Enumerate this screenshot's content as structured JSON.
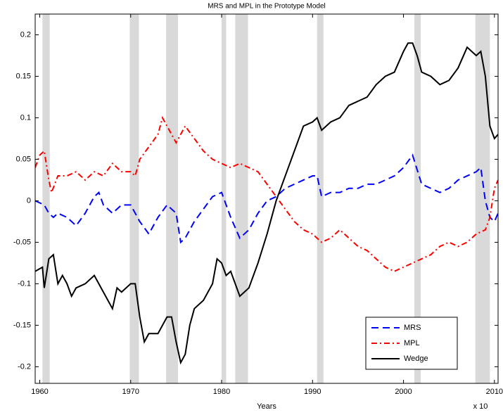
{
  "chart_data": {
    "type": "line",
    "title": "MRS and MPL in the Prototype Model",
    "x_label": "Years",
    "annotation": "x 10",
    "xlim": [
      1959.5,
      2010.4
    ],
    "ylim": [
      -0.22,
      0.225
    ],
    "xticks": [
      1960,
      1970,
      1980,
      1990,
      2000,
      2010
    ],
    "yticks": [
      -0.2,
      -0.15,
      -0.1,
      -0.05,
      0,
      0.05,
      0.1,
      0.15,
      0.2
    ],
    "shaded_periods": [
      [
        1960.3,
        1961.1
      ],
      [
        1969.9,
        1970.9
      ],
      [
        1973.9,
        1975.2
      ],
      [
        1980.0,
        1980.5
      ],
      [
        1981.5,
        1982.9
      ],
      [
        1990.5,
        1991.2
      ],
      [
        2001.2,
        2001.9
      ],
      [
        2007.9,
        2009.5
      ]
    ],
    "shade_color": "#d9d9d9",
    "legend_position": "lower right",
    "series": [
      {
        "name": "MRS",
        "color": "#0000ff",
        "line_style": "dashed",
        "x": [
          1959.5,
          1960.5,
          1961,
          1961.5,
          1962,
          1963,
          1964,
          1965,
          1966,
          1966.5,
          1967,
          1968,
          1969,
          1970,
          1971,
          1972,
          1973,
          1974,
          1975,
          1975.5,
          1976,
          1977,
          1978,
          1979,
          1980,
          1980.5,
          1981,
          1982,
          1983,
          1984,
          1985,
          1986,
          1987,
          1988,
          1989,
          1990,
          1990.5,
          1991,
          1992,
          1993,
          1994,
          1995,
          1996,
          1997,
          1998,
          1999,
          2000,
          2001,
          2002,
          2003,
          2004,
          2005,
          2006,
          2007,
          2008,
          2008.5,
          2009,
          2009.5,
          2010,
          2010.4
        ],
        "values": [
          0,
          -0.005,
          -0.015,
          -0.02,
          -0.015,
          -0.02,
          -0.03,
          -0.015,
          0.005,
          0.01,
          -0.005,
          -0.015,
          -0.005,
          -0.005,
          -0.025,
          -0.04,
          -0.02,
          -0.005,
          -0.015,
          -0.05,
          -0.045,
          -0.025,
          -0.01,
          0.005,
          0.01,
          -0.005,
          -0.02,
          -0.045,
          -0.035,
          -0.015,
          0,
          0.005,
          0.015,
          0.02,
          0.025,
          0.03,
          0.03,
          0.005,
          0.01,
          0.01,
          0.015,
          0.015,
          0.02,
          0.02,
          0.025,
          0.03,
          0.04,
          0.055,
          0.02,
          0.015,
          0.01,
          0.015,
          0.025,
          0.03,
          0.035,
          0.04,
          0,
          -0.02,
          -0.025,
          -0.015
        ]
      },
      {
        "name": "MPL",
        "color": "#ff0000",
        "line_style": "dashdot",
        "x": [
          1959.5,
          1960,
          1960.5,
          1961,
          1961.3,
          1962,
          1963,
          1964,
          1965,
          1966,
          1967,
          1968,
          1969,
          1970,
          1970.5,
          1971,
          1972,
          1973,
          1973.5,
          1974,
          1975,
          1976,
          1977,
          1978,
          1979,
          1980,
          1981,
          1982,
          1983,
          1984,
          1985,
          1986,
          1987,
          1988,
          1989,
          1990,
          1991,
          1992,
          1993,
          1994,
          1995,
          1996,
          1997,
          1998,
          1999,
          2000,
          2001,
          2002,
          2003,
          2004,
          2005,
          2006,
          2007,
          2008,
          2009,
          2009.5,
          2010,
          2010.4
        ],
        "values": [
          0.04,
          0.055,
          0.06,
          0.025,
          0.01,
          0.03,
          0.03,
          0.035,
          0.025,
          0.035,
          0.03,
          0.045,
          0.035,
          0.035,
          0.03,
          0.05,
          0.065,
          0.08,
          0.1,
          0.09,
          0.07,
          0.09,
          0.075,
          0.06,
          0.05,
          0.045,
          0.04,
          0.045,
          0.04,
          0.035,
          0.02,
          0.005,
          -0.01,
          -0.025,
          -0.035,
          -0.04,
          -0.05,
          -0.045,
          -0.035,
          -0.045,
          -0.055,
          -0.06,
          -0.07,
          -0.08,
          -0.085,
          -0.08,
          -0.075,
          -0.07,
          -0.065,
          -0.055,
          -0.05,
          -0.055,
          -0.05,
          -0.04,
          -0.035,
          -0.02,
          0.015,
          0.025
        ]
      },
      {
        "name": "Wedge",
        "color": "#000000",
        "line_style": "solid",
        "x": [
          1959.5,
          1960.3,
          1960.5,
          1961,
          1961.5,
          1962,
          1962.5,
          1963,
          1963.5,
          1964,
          1965,
          1966,
          1967,
          1968,
          1968.5,
          1969,
          1970,
          1970.5,
          1971,
          1971.5,
          1972,
          1973,
          1974,
          1974.5,
          1975,
          1975.5,
          1976,
          1976.5,
          1977,
          1978,
          1979,
          1979.5,
          1980,
          1980.5,
          1981,
          1981.5,
          1982,
          1983,
          1984,
          1985,
          1986,
          1987,
          1988,
          1989,
          1990,
          1990.5,
          1991,
          1992,
          1993,
          1994,
          1995,
          1996,
          1997,
          1998,
          1999,
          2000,
          2000.5,
          2001,
          2001.5,
          2002,
          2003,
          2004,
          2005,
          2006,
          2007,
          2007.5,
          2008,
          2008.5,
          2009,
          2009.5,
          2010,
          2010.4
        ],
        "values": [
          -0.085,
          -0.08,
          -0.105,
          -0.07,
          -0.065,
          -0.1,
          -0.09,
          -0.1,
          -0.115,
          -0.105,
          -0.1,
          -0.09,
          -0.11,
          -0.13,
          -0.105,
          -0.11,
          -0.1,
          -0.1,
          -0.14,
          -0.17,
          -0.16,
          -0.16,
          -0.14,
          -0.14,
          -0.17,
          -0.195,
          -0.185,
          -0.15,
          -0.13,
          -0.12,
          -0.1,
          -0.07,
          -0.075,
          -0.09,
          -0.085,
          -0.1,
          -0.115,
          -0.105,
          -0.075,
          -0.04,
          0,
          0.03,
          0.06,
          0.09,
          0.095,
          0.1,
          0.085,
          0.095,
          0.1,
          0.115,
          0.12,
          0.125,
          0.14,
          0.15,
          0.155,
          0.18,
          0.19,
          0.19,
          0.175,
          0.155,
          0.15,
          0.14,
          0.145,
          0.16,
          0.185,
          0.18,
          0.175,
          0.18,
          0.15,
          0.09,
          0.075,
          0.08
        ]
      }
    ]
  }
}
